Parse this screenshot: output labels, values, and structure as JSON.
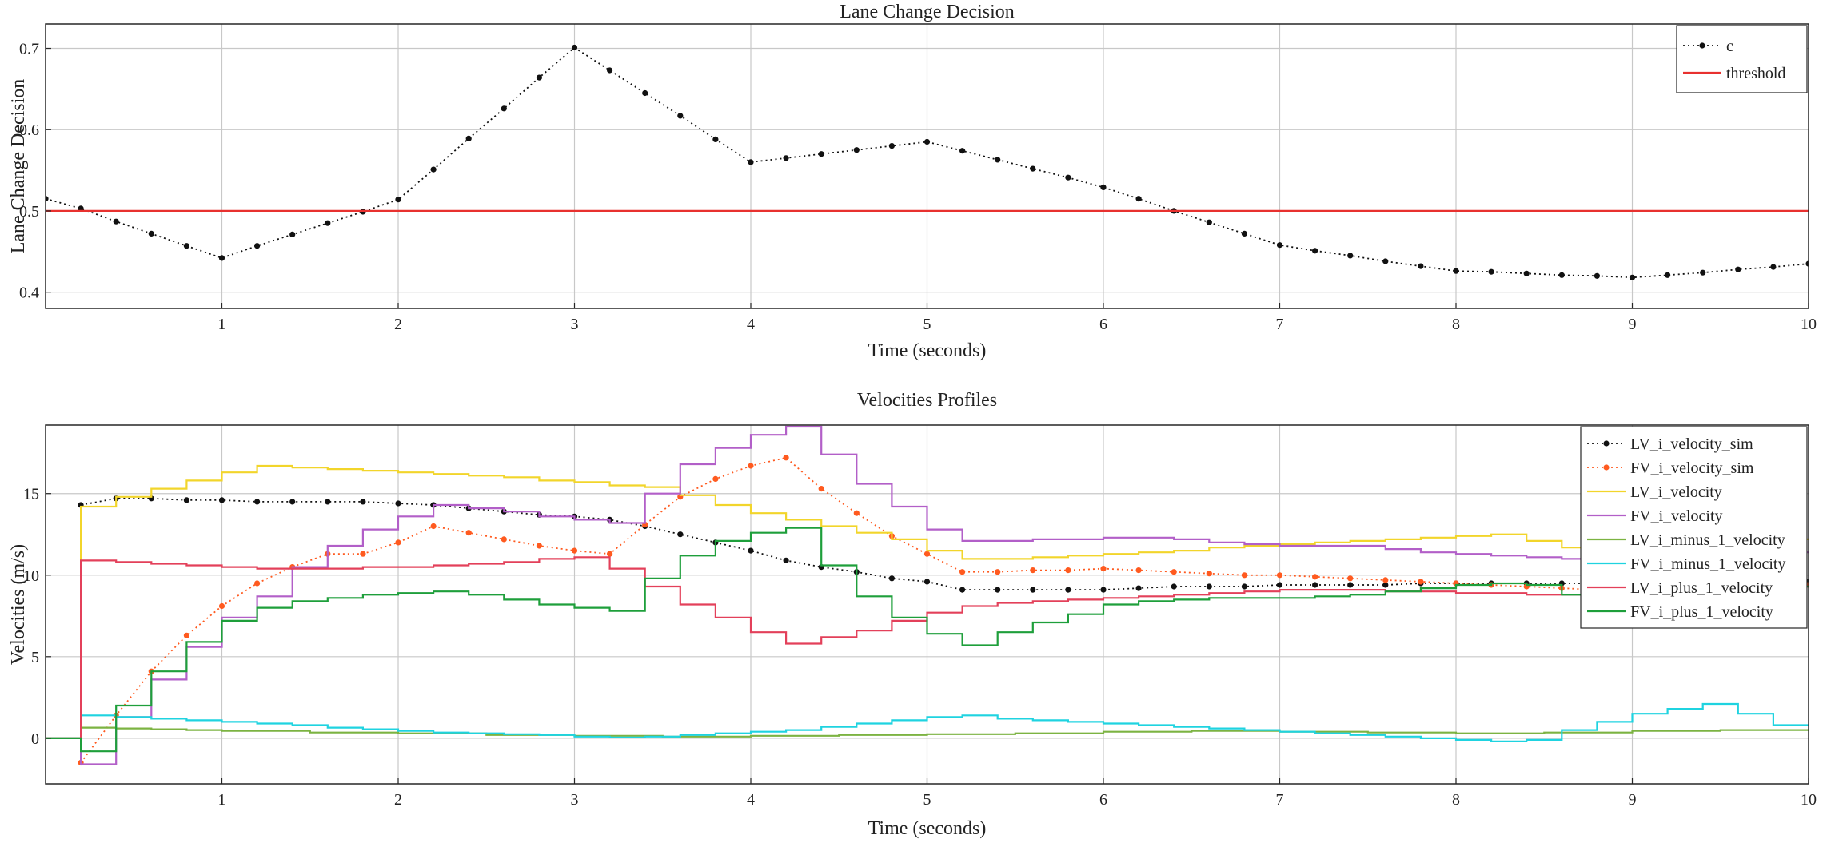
{
  "chart_data": [
    {
      "type": "line",
      "title": "Lane Change Decision",
      "xlabel": "Time (seconds)",
      "ylabel": "Lane Change Decision",
      "xlim": [
        0,
        10
      ],
      "ylim": [
        0.38,
        0.73
      ],
      "xticks": [
        1,
        2,
        3,
        4,
        5,
        6,
        7,
        8,
        9,
        10
      ],
      "yticks": [
        0.4,
        0.5,
        0.6,
        0.7
      ],
      "grid": true,
      "legend_position": "top-right",
      "series": [
        {
          "name": "c",
          "style": "dotted-markers",
          "color": "#111111",
          "x": [
            0,
            0.2,
            0.4,
            0.6,
            0.8,
            1.0,
            1.2,
            1.4,
            1.6,
            1.8,
            2.0,
            2.2,
            2.4,
            2.6,
            2.8,
            3.0,
            3.2,
            3.4,
            3.6,
            3.8,
            4.0,
            4.2,
            4.4,
            4.6,
            4.8,
            5.0,
            5.2,
            5.4,
            5.6,
            5.8,
            6.0,
            6.2,
            6.4,
            6.6,
            6.8,
            7.0,
            7.2,
            7.4,
            7.6,
            7.8,
            8.0,
            8.2,
            8.4,
            8.6,
            8.8,
            9.0,
            9.2,
            9.4,
            9.6,
            9.8,
            10.0
          ],
          "y": [
            0.515,
            0.503,
            0.487,
            0.472,
            0.457,
            0.442,
            0.457,
            0.471,
            0.485,
            0.499,
            0.514,
            0.551,
            0.589,
            0.626,
            0.664,
            0.701,
            0.673,
            0.645,
            0.617,
            0.588,
            0.56,
            0.565,
            0.57,
            0.575,
            0.58,
            0.585,
            0.574,
            0.563,
            0.552,
            0.541,
            0.529,
            0.515,
            0.5,
            0.486,
            0.472,
            0.458,
            0.451,
            0.445,
            0.438,
            0.432,
            0.426,
            0.425,
            0.423,
            0.421,
            0.42,
            0.418,
            0.421,
            0.424,
            0.428,
            0.431,
            0.435
          ]
        },
        {
          "name": "threshold",
          "style": "solid",
          "color": "#e8312f",
          "x": [
            0,
            10
          ],
          "y": [
            0.5,
            0.5
          ]
        }
      ]
    },
    {
      "type": "line",
      "title": "Velocities Profiles",
      "xlabel": "Time (seconds)",
      "ylabel": "Velocities (m/s)",
      "xlim": [
        0,
        10
      ],
      "ylim": [
        -2.8,
        19.2
      ],
      "xticks": [
        1,
        2,
        3,
        4,
        5,
        6,
        7,
        8,
        9,
        10
      ],
      "yticks": [
        0,
        5,
        10,
        15
      ],
      "grid": true,
      "legend_position": "top-right",
      "step_dx": 0.2,
      "series": [
        {
          "name": "LV_i_velocity_sim",
          "style": "dotted-markers",
          "color": "#111111",
          "x": [
            0.2,
            0.4,
            0.6,
            0.8,
            1.0,
            1.2,
            1.4,
            1.6,
            1.8,
            2.0,
            2.2,
            2.4,
            2.6,
            2.8,
            3.0,
            3.2,
            3.4,
            3.6,
            3.8,
            4.0,
            4.2,
            4.4,
            4.6,
            4.8,
            5.0,
            5.2,
            5.4,
            5.6,
            5.8,
            6.0,
            6.2,
            6.4,
            6.6,
            6.8,
            7.0,
            7.2,
            7.4,
            7.6,
            7.8,
            8.0,
            8.2,
            8.4,
            8.6,
            8.8,
            9.0,
            9.2,
            9.4,
            9.6,
            9.8,
            10.0
          ],
          "y": [
            14.3,
            14.7,
            14.7,
            14.6,
            14.6,
            14.5,
            14.5,
            14.5,
            14.5,
            14.4,
            14.3,
            14.1,
            13.9,
            13.7,
            13.6,
            13.4,
            13.0,
            12.5,
            12.0,
            11.5,
            10.9,
            10.5,
            10.2,
            9.8,
            9.6,
            9.1,
            9.1,
            9.1,
            9.1,
            9.1,
            9.2,
            9.3,
            9.3,
            9.3,
            9.4,
            9.4,
            9.4,
            9.4,
            9.5,
            9.5,
            9.5,
            9.5,
            9.5,
            9.5,
            9.6,
            9.6,
            9.6,
            9.6,
            9.6,
            9.6
          ]
        },
        {
          "name": "FV_i_velocity_sim",
          "style": "dotted-markers",
          "color": "#ff5a1f",
          "x": [
            0.2,
            0.4,
            0.6,
            0.8,
            1.0,
            1.2,
            1.4,
            1.6,
            1.8,
            2.0,
            2.2,
            2.4,
            2.6,
            2.8,
            3.0,
            3.2,
            3.4,
            3.6,
            3.8,
            4.0,
            4.2,
            4.4,
            4.6,
            4.8,
            5.0,
            5.2,
            5.4,
            5.6,
            5.8,
            6.0,
            6.2,
            6.4,
            6.6,
            6.8,
            7.0,
            7.2,
            7.4,
            7.6,
            7.8,
            8.0,
            8.2,
            8.4,
            8.6,
            8.8,
            9.0,
            9.2,
            9.4,
            9.6,
            9.8,
            10.0
          ],
          "y": [
            -1.5,
            1.4,
            4.1,
            6.3,
            8.1,
            9.5,
            10.5,
            11.3,
            11.3,
            12.0,
            13.0,
            12.6,
            12.2,
            11.8,
            11.5,
            11.3,
            13.1,
            14.8,
            15.9,
            16.7,
            17.2,
            15.3,
            13.8,
            12.4,
            11.3,
            10.2,
            10.2,
            10.3,
            10.3,
            10.4,
            10.3,
            10.2,
            10.1,
            10.0,
            10.0,
            9.9,
            9.8,
            9.7,
            9.6,
            9.5,
            9.4,
            9.3,
            9.2,
            9.1,
            9.1,
            9.2,
            9.3,
            9.3,
            9.4,
            9.4
          ]
        },
        {
          "name": "LV_i_velocity",
          "style": "step",
          "color": "#f2d52b",
          "x": [
            0,
            0.2,
            0.4,
            0.6,
            0.8,
            1.0,
            1.2,
            1.4,
            1.6,
            1.8,
            2.0,
            2.2,
            2.4,
            2.6,
            2.8,
            3.0,
            3.2,
            3.4,
            3.6,
            3.8,
            4.0,
            4.2,
            4.4,
            4.6,
            4.8,
            5.0,
            5.2,
            5.4,
            5.6,
            5.8,
            6.0,
            6.2,
            6.4,
            6.6,
            6.8,
            7.0,
            7.2,
            7.4,
            7.6,
            7.8,
            8.0,
            8.2,
            8.4,
            8.6,
            8.8,
            9.0,
            9.2,
            9.4,
            9.6,
            9.8
          ],
          "y": [
            0,
            14.2,
            14.8,
            15.3,
            15.8,
            16.3,
            16.7,
            16.6,
            16.5,
            16.4,
            16.3,
            16.2,
            16.1,
            16.0,
            15.8,
            15.7,
            15.5,
            15.4,
            14.9,
            14.3,
            13.8,
            13.4,
            13.0,
            12.6,
            12.2,
            11.5,
            11.0,
            11.0,
            11.1,
            11.2,
            11.3,
            11.4,
            11.5,
            11.7,
            11.8,
            11.9,
            12.0,
            12.1,
            12.2,
            12.3,
            12.4,
            12.5,
            12.1,
            11.7,
            11.8,
            11.9,
            12.0,
            12.1,
            12.2,
            12.2
          ]
        },
        {
          "name": "FV_i_velocity",
          "style": "step",
          "color": "#b25fc8",
          "x": [
            0,
            0.2,
            0.4,
            0.6,
            0.8,
            1.0,
            1.2,
            1.4,
            1.6,
            1.8,
            2.0,
            2.2,
            2.4,
            2.6,
            2.8,
            3.0,
            3.2,
            3.4,
            3.6,
            3.8,
            4.0,
            4.2,
            4.4,
            4.6,
            4.8,
            5.0,
            5.2,
            5.4,
            5.6,
            5.8,
            6.0,
            6.2,
            6.4,
            6.6,
            6.8,
            7.0,
            7.2,
            7.4,
            7.6,
            7.8,
            8.0,
            8.2,
            8.4,
            8.6,
            8.8,
            9.0,
            9.2,
            9.4,
            9.6,
            9.8
          ],
          "y": [
            0,
            -1.6,
            1.3,
            3.6,
            5.6,
            7.4,
            8.7,
            10.5,
            11.8,
            12.8,
            13.6,
            14.3,
            14.1,
            13.9,
            13.6,
            13.4,
            13.2,
            15.0,
            16.8,
            17.8,
            18.6,
            19.1,
            17.4,
            15.6,
            14.2,
            12.8,
            12.1,
            12.1,
            12.2,
            12.2,
            12.3,
            12.3,
            12.2,
            12.0,
            11.9,
            11.8,
            11.8,
            11.8,
            11.6,
            11.4,
            11.3,
            11.2,
            11.1,
            11.0,
            11.0,
            11.1,
            11.2,
            11.3,
            11.4,
            11.4
          ]
        },
        {
          "name": "LV_i_minus_1_velocity",
          "style": "step",
          "color": "#7cb342",
          "x": [
            0,
            0.2,
            0.4,
            0.6,
            0.8,
            1.0,
            1.5,
            2.0,
            2.5,
            3.0,
            3.5,
            4.0,
            4.5,
            5.0,
            5.5,
            6.0,
            6.5,
            7.0,
            7.5,
            8.0,
            8.5,
            9.0,
            9.5,
            9.8
          ],
          "y": [
            0,
            0.65,
            0.6,
            0.55,
            0.5,
            0.45,
            0.35,
            0.3,
            0.2,
            0.15,
            0.1,
            0.15,
            0.2,
            0.25,
            0.3,
            0.4,
            0.45,
            0.4,
            0.35,
            0.3,
            0.35,
            0.45,
            0.5,
            0.5
          ]
        },
        {
          "name": "FV_i_minus_1_velocity",
          "style": "step",
          "color": "#1fd3e0",
          "x": [
            0,
            0.2,
            0.4,
            0.6,
            0.8,
            1.0,
            1.2,
            1.4,
            1.6,
            1.8,
            2.0,
            2.2,
            2.4,
            2.6,
            2.8,
            3.0,
            3.2,
            3.4,
            3.6,
            3.8,
            4.0,
            4.2,
            4.4,
            4.6,
            4.8,
            5.0,
            5.2,
            5.4,
            5.6,
            5.8,
            6.0,
            6.2,
            6.4,
            6.6,
            6.8,
            7.0,
            7.2,
            7.4,
            7.6,
            7.8,
            8.0,
            8.2,
            8.4,
            8.6,
            8.8,
            9.0,
            9.2,
            9.4,
            9.6,
            9.8
          ],
          "y": [
            0,
            1.4,
            1.3,
            1.2,
            1.1,
            1.0,
            0.9,
            0.8,
            0.65,
            0.55,
            0.45,
            0.35,
            0.3,
            0.25,
            0.2,
            0.1,
            0.05,
            0.1,
            0.2,
            0.3,
            0.4,
            0.5,
            0.7,
            0.9,
            1.1,
            1.3,
            1.4,
            1.2,
            1.1,
            1.0,
            0.9,
            0.8,
            0.7,
            0.6,
            0.5,
            0.4,
            0.3,
            0.2,
            0.1,
            0.0,
            -0.1,
            -0.2,
            -0.1,
            0.5,
            1.0,
            1.5,
            1.8,
            2.1,
            1.5,
            0.8
          ]
        },
        {
          "name": "LV_i_plus_1_velocity",
          "style": "step",
          "color": "#e3405a",
          "x": [
            0,
            0.2,
            0.4,
            0.6,
            0.8,
            1.0,
            1.2,
            1.4,
            1.6,
            1.8,
            2.0,
            2.2,
            2.4,
            2.6,
            2.8,
            3.0,
            3.2,
            3.4,
            3.6,
            3.8,
            4.0,
            4.2,
            4.4,
            4.6,
            4.8,
            5.0,
            5.2,
            5.4,
            5.6,
            5.8,
            6.0,
            6.2,
            6.4,
            6.6,
            6.8,
            7.0,
            7.2,
            7.4,
            7.6,
            7.8,
            8.0,
            8.2,
            8.4,
            8.6,
            8.8,
            9.0,
            9.2,
            9.4,
            9.6,
            9.8
          ],
          "y": [
            0,
            10.9,
            10.8,
            10.7,
            10.6,
            10.5,
            10.4,
            10.4,
            10.4,
            10.5,
            10.5,
            10.6,
            10.7,
            10.8,
            11.0,
            11.1,
            10.4,
            9.3,
            8.2,
            7.4,
            6.5,
            5.8,
            6.2,
            6.6,
            7.2,
            7.7,
            8.1,
            8.3,
            8.4,
            8.5,
            8.6,
            8.7,
            8.8,
            8.9,
            9.0,
            9.1,
            9.1,
            9.1,
            9.0,
            9.0,
            8.9,
            8.9,
            8.8,
            8.8,
            8.8,
            8.9,
            9.0,
            9.1,
            9.2,
            9.3
          ]
        },
        {
          "name": "FV_i_plus_1_velocity",
          "style": "step",
          "color": "#1e9f3b",
          "x": [
            0,
            0.2,
            0.4,
            0.6,
            0.8,
            1.0,
            1.2,
            1.4,
            1.6,
            1.8,
            2.0,
            2.2,
            2.4,
            2.6,
            2.8,
            3.0,
            3.2,
            3.4,
            3.6,
            3.8,
            4.0,
            4.2,
            4.4,
            4.6,
            4.8,
            5.0,
            5.2,
            5.4,
            5.6,
            5.8,
            6.0,
            6.2,
            6.4,
            6.6,
            6.8,
            7.0,
            7.2,
            7.4,
            7.6,
            7.8,
            8.0,
            8.2,
            8.4,
            8.6,
            8.8,
            9.0,
            9.2,
            9.4,
            9.6,
            9.8
          ],
          "y": [
            0,
            -0.8,
            2.0,
            4.1,
            5.9,
            7.2,
            8.0,
            8.4,
            8.6,
            8.8,
            8.9,
            9.0,
            8.8,
            8.5,
            8.2,
            8.0,
            7.8,
            9.8,
            11.2,
            12.1,
            12.6,
            12.9,
            10.6,
            8.7,
            7.4,
            6.4,
            5.7,
            6.5,
            7.1,
            7.6,
            8.2,
            8.4,
            8.5,
            8.6,
            8.6,
            8.6,
            8.7,
            8.8,
            9.0,
            9.2,
            9.4,
            9.5,
            9.4,
            8.8,
            8.8,
            8.9,
            9.0,
            9.1,
            9.2,
            9.3
          ]
        }
      ]
    }
  ]
}
